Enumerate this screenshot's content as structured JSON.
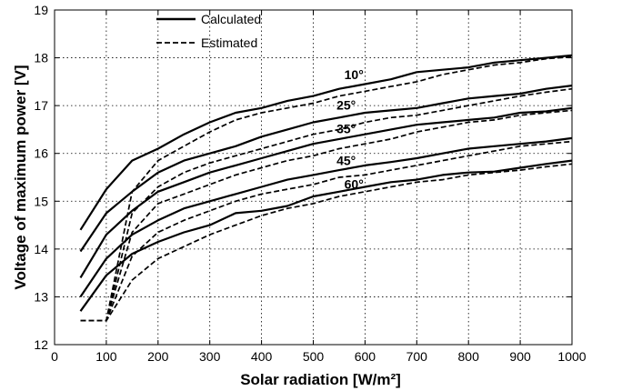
{
  "chart_data": {
    "type": "line",
    "title": "",
    "xlabel": "Solar radiation [W/m²]",
    "ylabel": "Voltage of maximum power [V]",
    "xlim": [
      0,
      1000
    ],
    "ylim": [
      12,
      19
    ],
    "x_ticks": [
      0,
      100,
      200,
      300,
      400,
      500,
      600,
      700,
      800,
      900,
      1000
    ],
    "y_ticks": [
      12,
      13,
      14,
      15,
      16,
      17,
      18,
      19
    ],
    "grid": true,
    "legend": {
      "placement": "top-left",
      "entries": [
        {
          "label": "Calculated",
          "style": "solid"
        },
        {
          "label": "Estimated",
          "style": "dashed"
        }
      ]
    },
    "line_color": "#000000",
    "annotations": [
      {
        "text": "10°",
        "x": 560,
        "y": 17.55
      },
      {
        "text": "25°",
        "x": 545,
        "y": 16.92
      },
      {
        "text": "35°",
        "x": 545,
        "y": 16.42
      },
      {
        "text": "45°",
        "x": 545,
        "y": 15.76
      },
      {
        "text": "60°",
        "x": 560,
        "y": 15.26
      }
    ],
    "series": [
      {
        "style": "solid",
        "x": [
          50,
          100,
          150,
          200,
          250,
          300,
          350,
          400,
          450,
          500,
          550,
          600,
          650,
          700,
          750,
          800,
          850,
          900,
          950,
          1000
        ],
        "values": [
          14.4,
          15.25,
          15.85,
          16.1,
          16.4,
          16.65,
          16.85,
          16.95,
          17.1,
          17.2,
          17.35,
          17.45,
          17.55,
          17.7,
          17.75,
          17.8,
          17.9,
          17.95,
          18.0,
          18.05
        ]
      },
      {
        "style": "solid",
        "x": [
          50,
          100,
          150,
          200,
          250,
          300,
          350,
          400,
          450,
          500,
          550,
          600,
          650,
          700,
          750,
          800,
          850,
          900,
          950,
          1000
        ],
        "values": [
          13.95,
          14.75,
          15.2,
          15.6,
          15.85,
          16.0,
          16.15,
          16.35,
          16.5,
          16.65,
          16.75,
          16.85,
          16.9,
          16.95,
          17.05,
          17.15,
          17.2,
          17.25,
          17.35,
          17.42
        ]
      },
      {
        "style": "solid",
        "x": [
          50,
          100,
          150,
          200,
          250,
          300,
          350,
          400,
          450,
          500,
          550,
          600,
          650,
          700,
          750,
          800,
          850,
          900,
          950,
          1000
        ],
        "values": [
          13.4,
          14.3,
          14.8,
          15.2,
          15.4,
          15.6,
          15.75,
          15.9,
          16.05,
          16.2,
          16.3,
          16.4,
          16.5,
          16.6,
          16.65,
          16.7,
          16.75,
          16.85,
          16.88,
          16.95
        ]
      },
      {
        "style": "solid",
        "x": [
          50,
          100,
          150,
          200,
          250,
          300,
          350,
          400,
          450,
          500,
          550,
          600,
          650,
          700,
          750,
          800,
          850,
          900,
          950,
          1000
        ],
        "values": [
          13.0,
          13.8,
          14.3,
          14.6,
          14.85,
          15.0,
          15.15,
          15.3,
          15.45,
          15.55,
          15.65,
          15.75,
          15.82,
          15.9,
          16.0,
          16.1,
          16.15,
          16.2,
          16.25,
          16.32
        ]
      },
      {
        "style": "solid",
        "x": [
          50,
          100,
          150,
          200,
          250,
          300,
          350,
          400,
          450,
          500,
          550,
          600,
          650,
          700,
          750,
          800,
          850,
          900,
          950,
          1000
        ],
        "values": [
          12.7,
          13.45,
          13.9,
          14.15,
          14.35,
          14.5,
          14.75,
          14.8,
          14.9,
          15.1,
          15.2,
          15.3,
          15.4,
          15.45,
          15.55,
          15.6,
          15.62,
          15.7,
          15.78,
          15.85
        ]
      },
      {
        "style": "dashed",
        "x": [
          50,
          100,
          150,
          200,
          250,
          300,
          350,
          400,
          450,
          500,
          550,
          600,
          650,
          700,
          750,
          800,
          850,
          900,
          950,
          1000
        ],
        "values": [
          12.5,
          12.5,
          15.2,
          15.85,
          16.15,
          16.45,
          16.7,
          16.85,
          16.95,
          17.05,
          17.2,
          17.3,
          17.4,
          17.5,
          17.65,
          17.75,
          17.85,
          17.9,
          17.98,
          18.02
        ]
      },
      {
        "style": "dashed",
        "x": [
          50,
          100,
          150,
          200,
          250,
          300,
          350,
          400,
          450,
          500,
          550,
          600,
          650,
          700,
          750,
          800,
          850,
          900,
          950,
          1000
        ],
        "values": [
          12.5,
          12.5,
          14.75,
          15.3,
          15.6,
          15.8,
          15.95,
          16.1,
          16.25,
          16.4,
          16.5,
          16.65,
          16.75,
          16.8,
          16.9,
          17.0,
          17.1,
          17.2,
          17.28,
          17.35
        ]
      },
      {
        "style": "dashed",
        "x": [
          50,
          100,
          150,
          200,
          250,
          300,
          350,
          400,
          450,
          500,
          550,
          600,
          650,
          700,
          750,
          800,
          850,
          900,
          950,
          1000
        ],
        "values": [
          12.5,
          12.5,
          14.35,
          14.95,
          15.15,
          15.35,
          15.55,
          15.7,
          15.85,
          15.95,
          16.1,
          16.2,
          16.3,
          16.45,
          16.55,
          16.65,
          16.7,
          16.8,
          16.85,
          16.9
        ]
      },
      {
        "style": "dashed",
        "x": [
          50,
          100,
          150,
          200,
          250,
          300,
          350,
          400,
          450,
          500,
          550,
          600,
          650,
          700,
          750,
          800,
          850,
          900,
          950,
          1000
        ],
        "values": [
          12.5,
          12.5,
          13.85,
          14.35,
          14.6,
          14.8,
          15.0,
          15.15,
          15.25,
          15.35,
          15.5,
          15.55,
          15.65,
          15.75,
          15.85,
          15.95,
          16.05,
          16.15,
          16.2,
          16.25
        ]
      },
      {
        "style": "dashed",
        "x": [
          50,
          100,
          150,
          200,
          250,
          300,
          350,
          400,
          450,
          500,
          550,
          600,
          650,
          700,
          750,
          800,
          850,
          900,
          950,
          1000
        ],
        "values": [
          12.5,
          12.5,
          13.35,
          13.8,
          14.05,
          14.3,
          14.5,
          14.7,
          14.85,
          14.95,
          15.1,
          15.2,
          15.3,
          15.4,
          15.45,
          15.55,
          15.6,
          15.65,
          15.72,
          15.78
        ]
      }
    ]
  }
}
